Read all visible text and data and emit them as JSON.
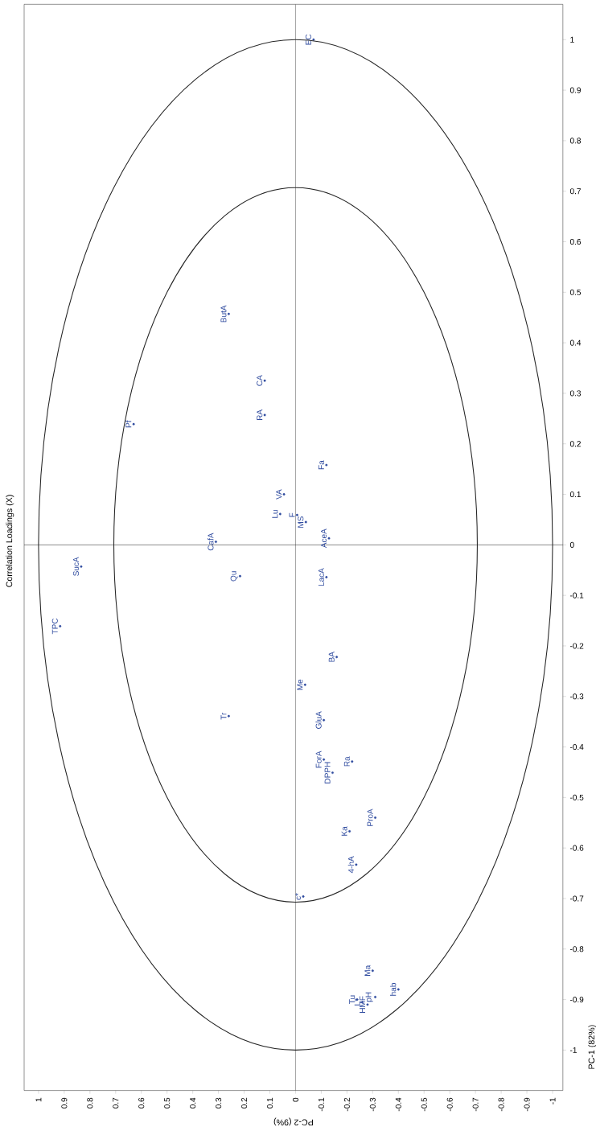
{
  "chart_data": {
    "type": "scatter",
    "title": "Correlation Loadings (X)",
    "xlabel": "PC-2 (9%)",
    "ylabel": "PC-1 (82%)",
    "xlim": [
      1.056,
      -1.04
    ],
    "ylim": [
      -1.08,
      1.07
    ],
    "xticks": [
      -1,
      -0.9,
      -0.8,
      -0.7,
      -0.6,
      -0.5,
      -0.4,
      -0.3,
      -0.2,
      -0.1,
      0,
      0.1,
      0.2,
      0.3,
      0.4,
      0.5,
      0.6,
      0.7,
      0.8,
      0.9,
      1
    ],
    "yticks": [
      -1,
      -0.9,
      -0.8,
      -0.7,
      -0.6,
      -0.5,
      -0.4,
      -0.3,
      -0.2,
      -0.1,
      0,
      0.1,
      0.2,
      0.3,
      0.4,
      0.5,
      0.6,
      0.7,
      0.8,
      0.9,
      1
    ],
    "grid": false,
    "ref_lines": [
      {
        "axis": "x",
        "value": 0,
        "color": "#555555"
      },
      {
        "axis": "y",
        "value": 0,
        "color": "#222222"
      }
    ],
    "series": [
      {
        "color": "#2e4a9e",
        "marker": "circle",
        "x": [
          -0.07,
          0.26,
          0.12,
          0.12,
          0.63,
          -0.12,
          0.045,
          0.06,
          -0.006,
          -0.04,
          0.31,
          -0.13,
          0.834,
          0.916,
          0.216,
          -0.12,
          -0.16,
          -0.037,
          0.26,
          -0.11,
          -0.22,
          -0.11,
          -0.144,
          -0.31,
          -0.21,
          -0.236,
          -0.03,
          -0.3,
          -0.4,
          -0.24,
          -0.26,
          -0.28,
          -0.31
        ],
        "values": [
          1.0,
          0.457,
          0.325,
          0.257,
          0.239,
          0.158,
          0.1,
          0.061,
          0.059,
          0.045,
          0.006,
          0.013,
          -0.043,
          -0.161,
          -0.062,
          -0.064,
          -0.222,
          -0.277,
          -0.339,
          -0.347,
          -0.429,
          -0.425,
          -0.451,
          -0.54,
          -0.567,
          -0.633,
          -0.696,
          -0.843,
          -0.88,
          -0.9,
          -0.905,
          -0.91,
          -0.895
        ]
      }
    ],
    "annotations": [
      {
        "text": "EC",
        "x": -0.07,
        "y": 1.0
      },
      {
        "text": "ButA",
        "x": 0.26,
        "y": 0.457
      },
      {
        "text": "CA",
        "x": 0.12,
        "y": 0.325
      },
      {
        "text": "RA",
        "x": 0.12,
        "y": 0.257
      },
      {
        "text": "Pf",
        "x": 0.63,
        "y": 0.239
      },
      {
        "text": "Fa",
        "x": -0.12,
        "y": 0.158
      },
      {
        "text": "VA",
        "x": 0.045,
        "y": 0.1
      },
      {
        "text": "Lu",
        "x": 0.06,
        "y": 0.061
      },
      {
        "text": "F",
        "x": -0.006,
        "y": 0.059
      },
      {
        "text": "MS",
        "x": -0.04,
        "y": 0.045
      },
      {
        "text": "CafA",
        "x": 0.31,
        "y": 0.006
      },
      {
        "text": "AceA",
        "x": -0.13,
        "y": 0.013
      },
      {
        "text": "SucA",
        "x": 0.834,
        "y": -0.043
      },
      {
        "text": "TPC",
        "x": 0.916,
        "y": -0.161
      },
      {
        "text": "Qu",
        "x": 0.216,
        "y": -0.062
      },
      {
        "text": "LacA",
        "x": -0.12,
        "y": -0.064
      },
      {
        "text": "BA",
        "x": -0.16,
        "y": -0.222
      },
      {
        "text": "Me",
        "x": -0.037,
        "y": -0.277
      },
      {
        "text": "Tr",
        "x": 0.26,
        "y": -0.339
      },
      {
        "text": "GluA",
        "x": -0.11,
        "y": -0.347
      },
      {
        "text": "Ra",
        "x": -0.22,
        "y": -0.429
      },
      {
        "text": "ForA",
        "x": -0.11,
        "y": -0.425
      },
      {
        "text": "DPPH",
        "x": -0.144,
        "y": -0.451
      },
      {
        "text": "ProA",
        "x": -0.31,
        "y": -0.54
      },
      {
        "text": "Ka",
        "x": -0.21,
        "y": -0.567
      },
      {
        "text": "4-hA",
        "x": -0.236,
        "y": -0.633
      },
      {
        "text": "c*",
        "x": -0.03,
        "y": -0.696
      },
      {
        "text": "Ma",
        "x": -0.3,
        "y": -0.843
      },
      {
        "text": "hab",
        "x": -0.4,
        "y": -0.88
      },
      {
        "text": "Tu",
        "x": -0.24,
        "y": -0.9
      },
      {
        "text": "L*",
        "x": -0.26,
        "y": -0.905
      },
      {
        "text": "HMF",
        "x": -0.28,
        "y": -0.91
      },
      {
        "text": "pH",
        "x": -0.31,
        "y": -0.895
      }
    ]
  }
}
